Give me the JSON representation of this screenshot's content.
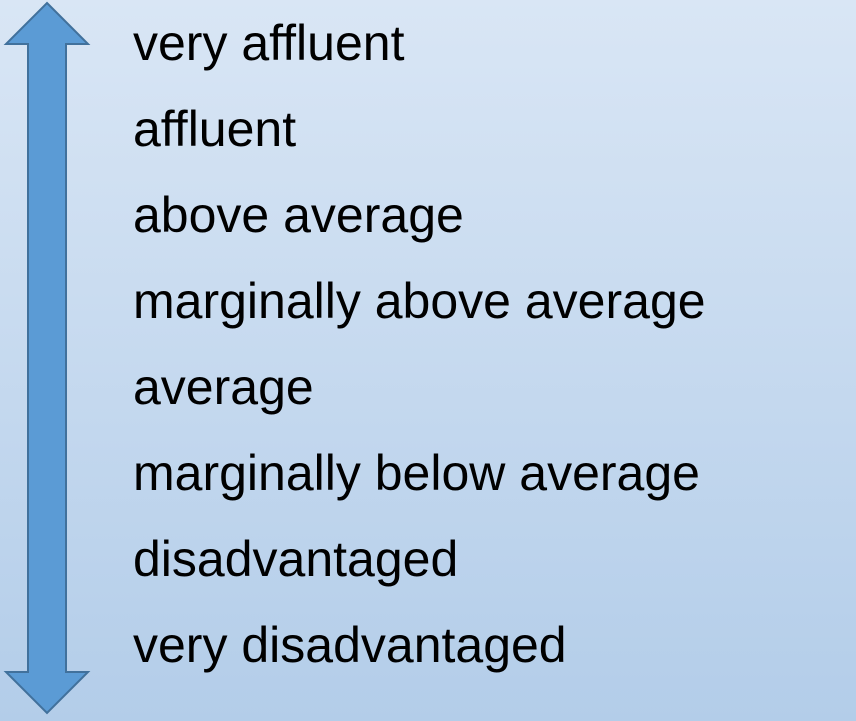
{
  "scale": {
    "levels": [
      "very affluent",
      "affluent",
      "above average",
      "marginally above average",
      "average",
      "marginally below average",
      "disadvantaged",
      "very disadvantaged"
    ]
  }
}
